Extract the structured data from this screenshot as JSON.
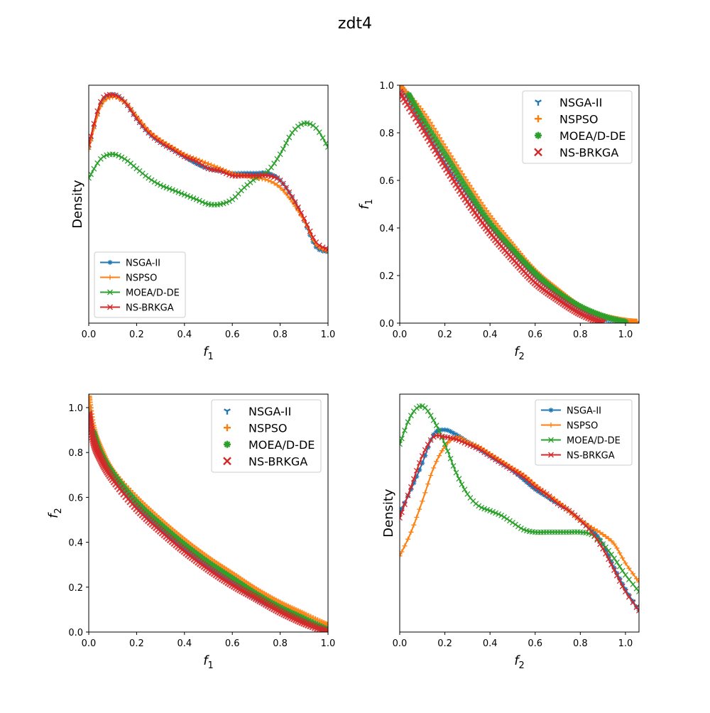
{
  "figure": {
    "title": "zdt4"
  },
  "colors": {
    "NSGA-II": "#1f77b4",
    "NSPSO": "#ff7f0e",
    "MOEA/D-DE": "#2ca02c",
    "NS-BRKGA": "#d62728"
  },
  "chart_data": [
    {
      "id": "density-f1",
      "type": "line",
      "title": "",
      "xlabel": "f1",
      "ylabel": "Density",
      "xlim": [
        0,
        1
      ],
      "ylim": [
        0,
        1
      ],
      "xticks": [
        "0.0",
        "0.2",
        "0.4",
        "0.6",
        "0.8",
        "1.0"
      ],
      "yticks": [],
      "legend": "lower-left",
      "x": [
        0,
        0.05,
        0.1,
        0.15,
        0.2,
        0.25,
        0.3,
        0.35,
        0.4,
        0.45,
        0.5,
        0.55,
        0.6,
        0.65,
        0.7,
        0.75,
        0.8,
        0.85,
        0.9,
        0.95,
        1.0
      ],
      "series": [
        {
          "name": "NSGA-II",
          "marker": "star",
          "values": [
            0.74,
            0.92,
            0.96,
            0.93,
            0.86,
            0.8,
            0.76,
            0.73,
            0.7,
            0.67,
            0.65,
            0.64,
            0.63,
            0.63,
            0.63,
            0.63,
            0.6,
            0.53,
            0.43,
            0.32,
            0.3
          ]
        },
        {
          "name": "NSPSO",
          "marker": "plus",
          "values": [
            0.73,
            0.91,
            0.95,
            0.93,
            0.87,
            0.81,
            0.77,
            0.74,
            0.71,
            0.69,
            0.67,
            0.65,
            0.63,
            0.62,
            0.61,
            0.6,
            0.57,
            0.51,
            0.43,
            0.33,
            0.3
          ]
        },
        {
          "name": "MOEA/D-DE",
          "marker": "x",
          "values": [
            0.61,
            0.69,
            0.71,
            0.69,
            0.65,
            0.61,
            0.58,
            0.56,
            0.54,
            0.52,
            0.5,
            0.5,
            0.52,
            0.57,
            0.61,
            0.64,
            0.71,
            0.8,
            0.84,
            0.82,
            0.74
          ]
        },
        {
          "name": "NS-BRKGA",
          "marker": "cross",
          "values": [
            0.75,
            0.93,
            0.96,
            0.93,
            0.86,
            0.8,
            0.76,
            0.73,
            0.7,
            0.68,
            0.65,
            0.64,
            0.62,
            0.62,
            0.62,
            0.62,
            0.6,
            0.53,
            0.44,
            0.34,
            0.31
          ]
        }
      ]
    },
    {
      "id": "scatter-f2-f1",
      "type": "scatter",
      "title": "",
      "xlabel": "f2",
      "ylabel": "f1",
      "xlim": [
        0,
        1.06
      ],
      "ylim": [
        0,
        1
      ],
      "xticks": [
        "0.0",
        "0.2",
        "0.4",
        "0.6",
        "0.8",
        "1.0"
      ],
      "yticks": [
        "0.0",
        "0.2",
        "0.4",
        "0.6",
        "0.8",
        "1.0"
      ],
      "legend": "top-right",
      "series": [
        {
          "name": "NSGA-II",
          "marker": "tri",
          "x": [
            0,
            0.1,
            0.2,
            0.3,
            0.4,
            0.5,
            0.6,
            0.7,
            0.8,
            0.9,
            1.0,
            1.05
          ],
          "y": [
            1.0,
            0.84,
            0.68,
            0.54,
            0.41,
            0.3,
            0.2,
            0.12,
            0.06,
            0.02,
            0.005,
            0.0
          ]
        },
        {
          "name": "NSPSO",
          "marker": "plus",
          "x": [
            0,
            0.1,
            0.2,
            0.3,
            0.4,
            0.5,
            0.6,
            0.7,
            0.8,
            0.9,
            1.0,
            1.05
          ],
          "y": [
            1.0,
            0.89,
            0.74,
            0.59,
            0.45,
            0.33,
            0.22,
            0.14,
            0.07,
            0.03,
            0.01,
            0.005
          ]
        },
        {
          "name": "MOEA/D-DE",
          "marker": "star",
          "x": [
            0.04,
            0.1,
            0.2,
            0.3,
            0.4,
            0.5,
            0.6,
            0.7,
            0.8,
            0.9,
            1.0
          ],
          "y": [
            0.96,
            0.86,
            0.71,
            0.56,
            0.42,
            0.31,
            0.21,
            0.13,
            0.07,
            0.03,
            0.005
          ]
        },
        {
          "name": "NS-BRKGA",
          "marker": "cross",
          "x": [
            0,
            0.1,
            0.2,
            0.3,
            0.4,
            0.5,
            0.6,
            0.7,
            0.8,
            0.9
          ],
          "y": [
            0.97,
            0.82,
            0.66,
            0.51,
            0.38,
            0.27,
            0.17,
            0.1,
            0.04,
            0.0
          ]
        }
      ]
    },
    {
      "id": "scatter-f1-f2",
      "type": "scatter",
      "title": "",
      "xlabel": "f1",
      "ylabel": "f2",
      "xlim": [
        0,
        1
      ],
      "ylim": [
        0,
        1.06
      ],
      "xticks": [
        "0.0",
        "0.2",
        "0.4",
        "0.6",
        "0.8",
        "1.0"
      ],
      "yticks": [
        "0.0",
        "0.2",
        "0.4",
        "0.6",
        "0.8",
        "1.0"
      ],
      "legend": "top-right",
      "series": [
        {
          "name": "NSGA-II",
          "marker": "tri",
          "x": [
            0,
            0.02,
            0.05,
            0.1,
            0.2,
            0.3,
            0.4,
            0.5,
            0.6,
            0.7,
            0.8,
            0.9,
            1.0
          ],
          "y": [
            1.0,
            0.86,
            0.78,
            0.69,
            0.56,
            0.46,
            0.37,
            0.29,
            0.22,
            0.15,
            0.1,
            0.05,
            0.0
          ]
        },
        {
          "name": "NSPSO",
          "marker": "plus",
          "x": [
            0,
            0.02,
            0.05,
            0.1,
            0.2,
            0.3,
            0.4,
            0.5,
            0.6,
            0.7,
            0.8,
            0.9,
            1.0
          ],
          "y": [
            1.05,
            0.91,
            0.82,
            0.72,
            0.6,
            0.5,
            0.41,
            0.33,
            0.26,
            0.19,
            0.13,
            0.08,
            0.03
          ]
        },
        {
          "name": "MOEA/D-DE",
          "marker": "star",
          "x": [
            0.02,
            0.05,
            0.1,
            0.2,
            0.3,
            0.4,
            0.5,
            0.6,
            0.7,
            0.8,
            0.9,
            1.0
          ],
          "y": [
            0.89,
            0.8,
            0.71,
            0.58,
            0.48,
            0.39,
            0.31,
            0.24,
            0.17,
            0.11,
            0.06,
            0.01
          ]
        },
        {
          "name": "NS-BRKGA",
          "marker": "cross",
          "x": [
            0,
            0.02,
            0.05,
            0.1,
            0.2,
            0.3,
            0.4,
            0.5,
            0.6,
            0.7,
            0.8,
            0.9,
            1.0
          ],
          "y": [
            0.97,
            0.85,
            0.77,
            0.68,
            0.55,
            0.45,
            0.36,
            0.28,
            0.21,
            0.15,
            0.09,
            0.04,
            0.0
          ]
        }
      ]
    },
    {
      "id": "density-f2",
      "type": "line",
      "title": "",
      "xlabel": "f2",
      "ylabel": "Density",
      "xlim": [
        0,
        1.06
      ],
      "ylim": [
        0,
        1
      ],
      "xticks": [
        "0.0",
        "0.2",
        "0.4",
        "0.6",
        "0.8",
        "1.0"
      ],
      "yticks": [],
      "legend": "top-right",
      "x": [
        0,
        0.05,
        0.1,
        0.15,
        0.2,
        0.25,
        0.3,
        0.35,
        0.4,
        0.45,
        0.5,
        0.55,
        0.6,
        0.65,
        0.7,
        0.75,
        0.8,
        0.85,
        0.9,
        0.95,
        1.0,
        1.06
      ],
      "series": [
        {
          "name": "NSGA-II",
          "marker": "star",
          "values": [
            0.5,
            0.6,
            0.71,
            0.83,
            0.85,
            0.83,
            0.8,
            0.77,
            0.74,
            0.71,
            0.68,
            0.64,
            0.6,
            0.57,
            0.54,
            0.51,
            0.47,
            0.43,
            0.37,
            0.27,
            0.18,
            0.09
          ]
        },
        {
          "name": "NSPSO",
          "marker": "plus",
          "values": [
            0.32,
            0.42,
            0.55,
            0.69,
            0.78,
            0.82,
            0.8,
            0.78,
            0.75,
            0.72,
            0.69,
            0.66,
            0.62,
            0.58,
            0.55,
            0.51,
            0.47,
            0.44,
            0.41,
            0.37,
            0.29,
            0.21
          ]
        },
        {
          "name": "MOEA/D-DE",
          "marker": "x",
          "values": [
            0.79,
            0.91,
            0.95,
            0.89,
            0.79,
            0.67,
            0.58,
            0.53,
            0.51,
            0.49,
            0.46,
            0.43,
            0.42,
            0.42,
            0.42,
            0.42,
            0.42,
            0.41,
            0.37,
            0.31,
            0.24,
            0.17
          ]
        },
        {
          "name": "NS-BRKGA",
          "marker": "cross",
          "values": [
            0.48,
            0.61,
            0.74,
            0.82,
            0.82,
            0.81,
            0.79,
            0.77,
            0.74,
            0.71,
            0.68,
            0.65,
            0.61,
            0.58,
            0.54,
            0.51,
            0.47,
            0.42,
            0.35,
            0.26,
            0.17,
            0.09
          ]
        }
      ]
    }
  ]
}
